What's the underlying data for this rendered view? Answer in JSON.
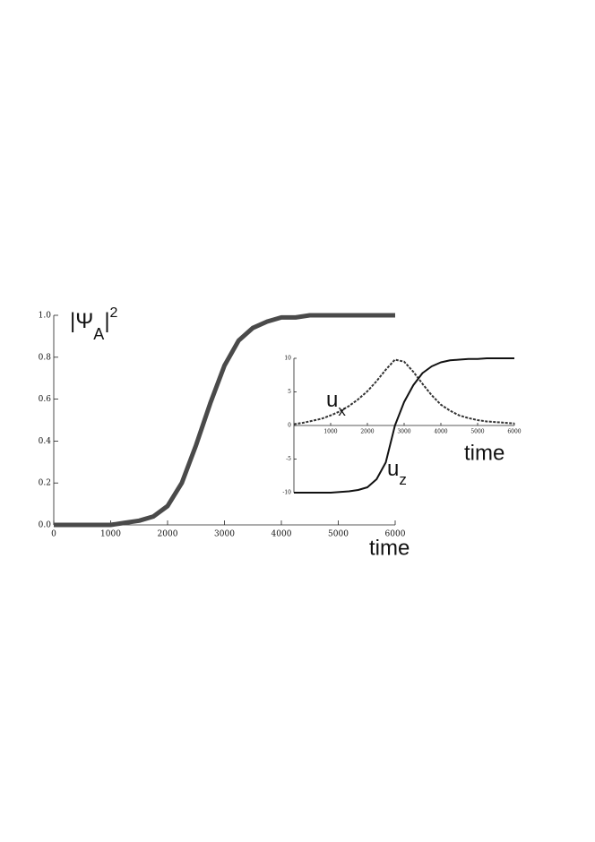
{
  "chart_data": [
    {
      "type": "line",
      "x": [
        0,
        250,
        500,
        750,
        1000,
        1250,
        1500,
        1750,
        2000,
        2250,
        2500,
        2750,
        3000,
        3250,
        3500,
        3750,
        4000,
        4250,
        4500,
        4750,
        5000,
        5250,
        5500,
        5750,
        6000
      ],
      "values": [
        0,
        0,
        0,
        0,
        0,
        0.01,
        0.02,
        0.04,
        0.09,
        0.2,
        0.38,
        0.58,
        0.76,
        0.88,
        0.94,
        0.97,
        0.99,
        0.99,
        1,
        1,
        1,
        1,
        1,
        1,
        1
      ],
      "color": "#4a4a4a",
      "xlim": [
        0,
        6000
      ],
      "ylim": [
        0,
        1
      ],
      "xticks": [
        0,
        1000,
        2000,
        3000,
        4000,
        5000,
        6000
      ],
      "yticks": [
        {
          "value": 0,
          "label": "0.0"
        },
        {
          "value": 0.2,
          "label": "0.2"
        },
        {
          "value": 0.4,
          "label": "0.4"
        },
        {
          "value": 0.6,
          "label": "0.6"
        },
        {
          "value": 0.8,
          "label": "0.8"
        },
        {
          "value": 1,
          "label": "1.0"
        }
      ],
      "xlabel": "time",
      "ylabel": {
        "base": "|Ψ",
        "sub": "A",
        "close": "|",
        "sup": "2"
      }
    },
    {
      "type": "line",
      "x": [
        0,
        250,
        500,
        750,
        1000,
        1250,
        1500,
        1750,
        2000,
        2250,
        2500,
        2750,
        3000,
        3250,
        3500,
        3750,
        4000,
        4250,
        4500,
        4750,
        5000,
        5250,
        5500,
        5750,
        6000
      ],
      "series": [
        {
          "name": "u",
          "subscript": "x",
          "color": "#333333",
          "dashed": true,
          "values": [
            0.2,
            0.4,
            0.7,
            1.0,
            1.5,
            2.1,
            2.9,
            3.9,
            5.1,
            6.6,
            8.3,
            9.8,
            9.5,
            8.0,
            6.2,
            4.5,
            3.1,
            2.2,
            1.5,
            1.1,
            0.8,
            0.6,
            0.5,
            0.4,
            0.3
          ]
        },
        {
          "name": "u",
          "subscript": "z",
          "color": "#111111",
          "dashed": false,
          "values": [
            -10,
            -10,
            -10,
            -10,
            -10,
            -9.9,
            -9.8,
            -9.6,
            -9.2,
            -8.0,
            -5.5,
            0,
            3.5,
            6,
            7.8,
            8.8,
            9.4,
            9.7,
            9.8,
            9.9,
            9.9,
            10,
            10,
            10,
            10
          ]
        }
      ],
      "xlim": [
        0,
        6000
      ],
      "ylim": [
        -10,
        10
      ],
      "xticks": [
        1000,
        2000,
        3000,
        4000,
        5000,
        6000
      ],
      "yticks": [
        -10,
        -5,
        0,
        5,
        10
      ],
      "xlabel": "time"
    }
  ]
}
